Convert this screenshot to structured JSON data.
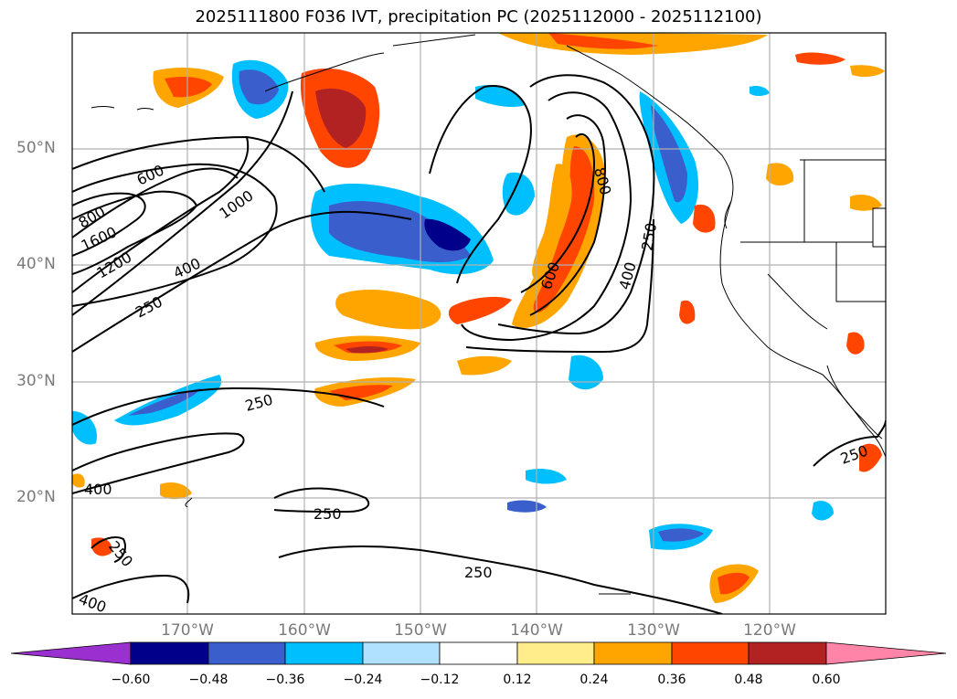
{
  "title": "2025111800 F036 IVT, precipitation PC (2025112000 - 2025112100)",
  "latitude_labels": [
    "50°N",
    "40°N",
    "30°N",
    "20°N"
  ],
  "longitude_labels": [
    "170°W",
    "160°W",
    "150°W",
    "140°W",
    "130°W",
    "120°W"
  ],
  "ivt_contour_labels": [
    "600",
    "800",
    "1000",
    "1600",
    "1200",
    "400",
    "250",
    "800",
    "600",
    "400",
    "250",
    "250",
    "400",
    "250",
    "250",
    "400",
    "250",
    "250"
  ],
  "colorbar": {
    "ticks": [
      "−0.60",
      "−0.48",
      "−0.36",
      "−0.24",
      "−0.12",
      "0.12",
      "0.24",
      "0.36",
      "0.48",
      "0.60"
    ],
    "colors": [
      "#9b30d0",
      "#00008b",
      "#3a5fcd",
      "#00bfff",
      "#b0e2ff",
      "#ffffff",
      "#ffec8b",
      "#ffa500",
      "#ff4500",
      "#b22222",
      "#ff85a8"
    ]
  },
  "colors": {
    "frame": "#000000",
    "grid": "#b0b0b0",
    "contour": "#000000",
    "coast": "#000000"
  }
}
